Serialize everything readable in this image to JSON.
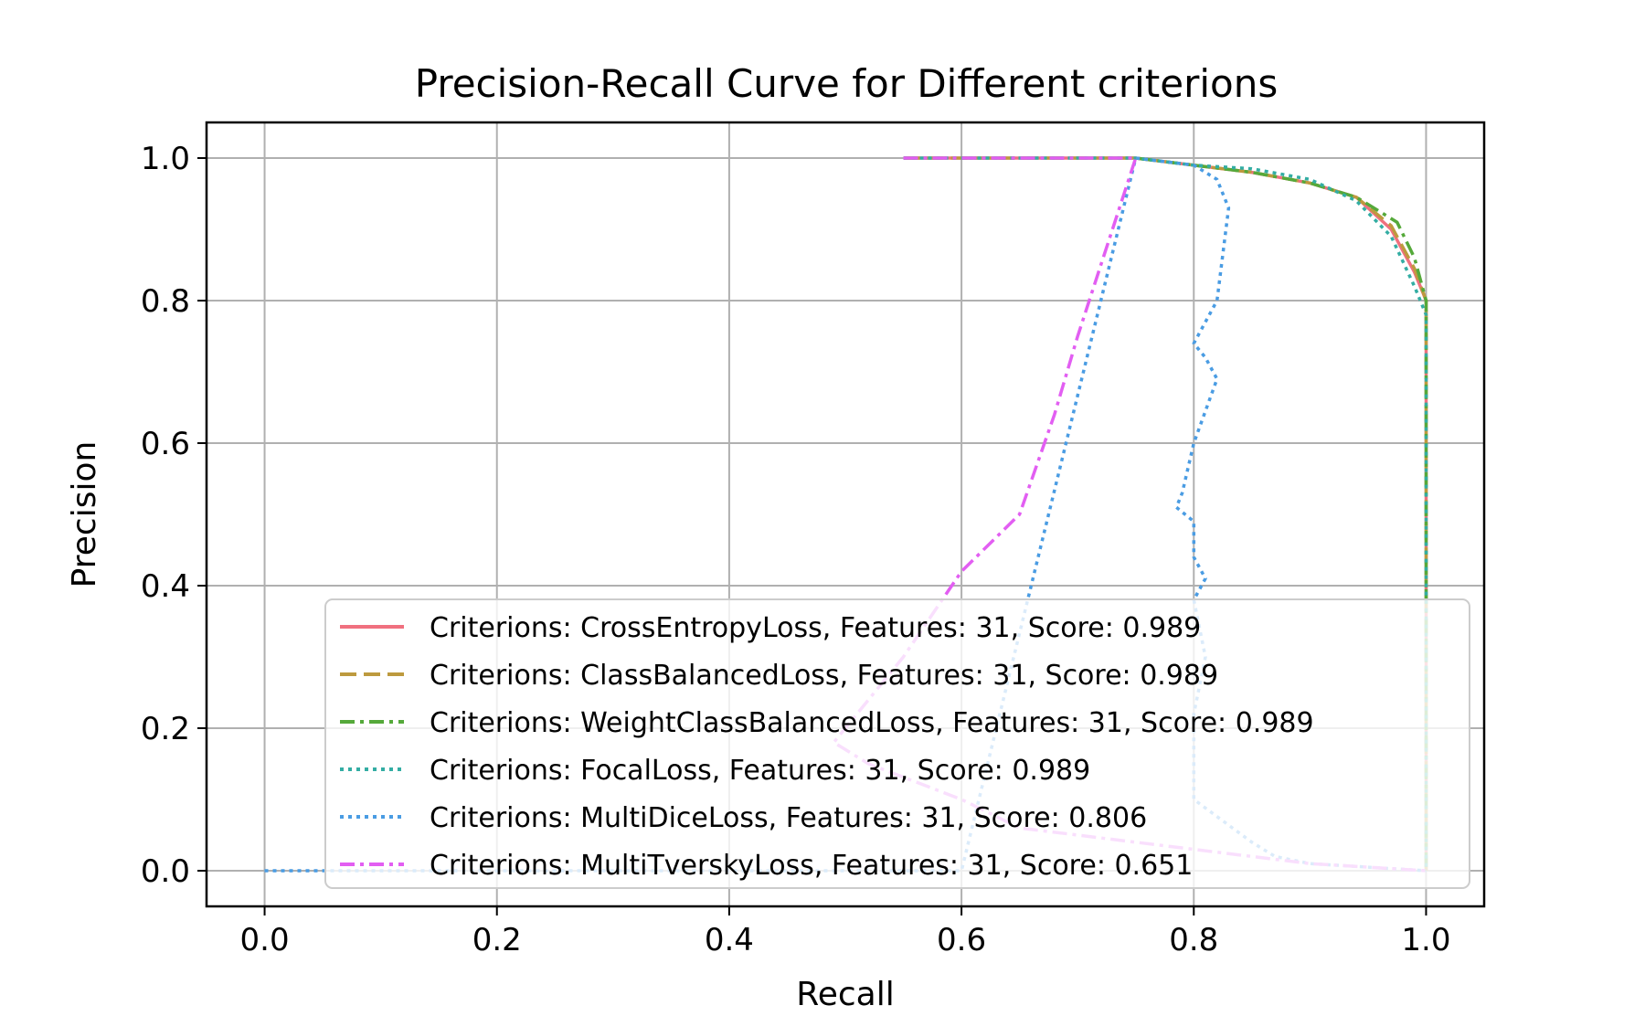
{
  "chart_data": {
    "type": "line",
    "title": "Precision-Recall Curve for Different criterions",
    "xlabel": "Recall",
    "ylabel": "Precision",
    "xlim": [
      -0.05,
      1.05
    ],
    "ylim": [
      -0.05,
      1.05
    ],
    "xticks": [
      "0.0",
      "0.2",
      "0.4",
      "0.6",
      "0.8",
      "1.0"
    ],
    "yticks": [
      "0.0",
      "0.2",
      "0.4",
      "0.6",
      "0.8",
      "1.0"
    ],
    "grid": true,
    "legend_position": "lower-right",
    "series": [
      {
        "name": "Criterions: CrossEntropyLoss, Features: 31, Score: 0.989",
        "color": "#f0707f",
        "dash": "solid",
        "x": [
          0.55,
          0.75,
          0.8,
          0.85,
          0.9,
          0.94,
          0.97,
          0.99,
          1.0,
          1.0,
          1.0
        ],
        "y": [
          1.0,
          1.0,
          0.99,
          0.98,
          0.965,
          0.945,
          0.9,
          0.84,
          0.8,
          0.4,
          0.0
        ]
      },
      {
        "name": "Criterions: ClassBalancedLoss, Features: 31, Score: 0.989",
        "color": "#bd9a3e",
        "dash": "dashed",
        "x": [
          0.55,
          0.75,
          0.8,
          0.85,
          0.9,
          0.94,
          0.97,
          0.99,
          1.0,
          1.0,
          1.0
        ],
        "y": [
          1.0,
          1.0,
          0.99,
          0.98,
          0.965,
          0.945,
          0.905,
          0.845,
          0.8,
          0.4,
          0.0
        ]
      },
      {
        "name": "Criterions: WeightClassBalancedLoss, Features: 31, Score: 0.989",
        "color": "#55a93a",
        "dash": "dashdot",
        "x": [
          0.55,
          0.75,
          0.8,
          0.85,
          0.9,
          0.94,
          0.975,
          0.99,
          1.0,
          1.0,
          1.0
        ],
        "y": [
          1.0,
          1.0,
          0.99,
          0.98,
          0.965,
          0.945,
          0.91,
          0.86,
          0.8,
          0.4,
          0.0
        ]
      },
      {
        "name": "Criterions: FocalLoss, Features: 31, Score: 0.989",
        "color": "#33ada3",
        "dash": "dotted",
        "x": [
          0.55,
          0.75,
          0.8,
          0.85,
          0.9,
          0.94,
          0.97,
          0.99,
          1.0,
          1.0,
          1.0
        ],
        "y": [
          1.0,
          1.0,
          0.99,
          0.985,
          0.97,
          0.94,
          0.89,
          0.82,
          0.78,
          0.4,
          0.0
        ]
      },
      {
        "name": "Criterions: MultiDiceLoss, Features: 31, Score: 0.806",
        "color": "#4a9ce3",
        "dash": "dotted",
        "x": [
          0.0,
          0.05,
          0.6,
          0.75,
          0.8,
          0.82,
          0.83,
          0.82,
          0.8,
          0.81,
          0.82,
          0.8,
          0.79,
          0.785,
          0.8,
          0.8,
          0.81,
          0.8,
          0.81,
          0.8,
          0.8,
          0.85,
          0.87,
          0.9,
          1.0
        ],
        "y": [
          0.0,
          0.0,
          0.0,
          1.0,
          0.99,
          0.97,
          0.93,
          0.8,
          0.74,
          0.72,
          0.69,
          0.6,
          0.53,
          0.51,
          0.49,
          0.44,
          0.41,
          0.38,
          0.3,
          0.22,
          0.1,
          0.04,
          0.02,
          0.01,
          0.0
        ]
      },
      {
        "name": "Criterions: MultiTverskyLoss, Features: 31, Score: 0.651",
        "color": "#e25ef2",
        "dash": "dashdot",
        "x": [
          0.55,
          0.75,
          0.74,
          0.72,
          0.7,
          0.68,
          0.65,
          0.6,
          0.55,
          0.5,
          0.49,
          0.52,
          0.6,
          0.65,
          0.8,
          0.9,
          1.0
        ],
        "y": [
          1.0,
          1.0,
          0.95,
          0.85,
          0.75,
          0.64,
          0.5,
          0.42,
          0.3,
          0.2,
          0.18,
          0.15,
          0.1,
          0.06,
          0.03,
          0.01,
          0.0
        ]
      }
    ]
  }
}
